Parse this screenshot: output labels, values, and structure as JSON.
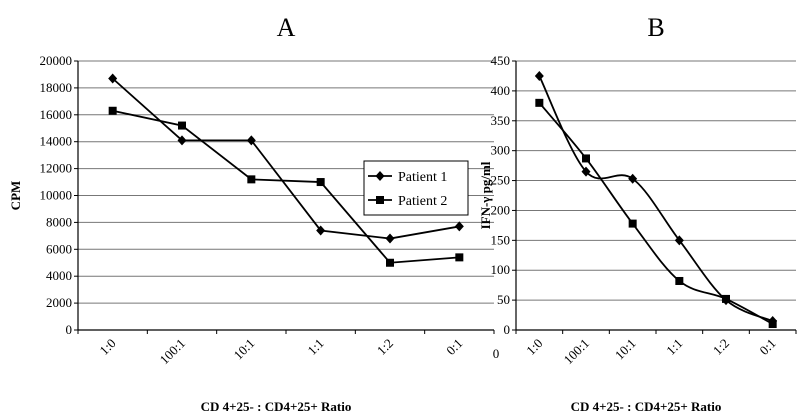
{
  "figure": {
    "panels": [
      "A",
      "B"
    ]
  },
  "legend": {
    "entries": [
      "Patient 1",
      "Patient 2"
    ]
  },
  "chart_data": [
    {
      "type": "line",
      "panel": "A",
      "title": "A",
      "ylabel": "CPM",
      "xlabel": "CD 4+25- : CD4+25+ Ratio",
      "categories": [
        "1:0",
        "100:1",
        "10:1",
        "1:1",
        "1:2",
        "0:1"
      ],
      "ylim": [
        0,
        20000
      ],
      "yticks": [
        0,
        2000,
        4000,
        6000,
        8000,
        10000,
        12000,
        14000,
        16000,
        18000,
        20000
      ],
      "grid": true,
      "smooth": false,
      "series": [
        {
          "name": "Patient 1",
          "marker": "diamond",
          "values": [
            18700,
            14100,
            14100,
            7400,
            6800,
            7700
          ]
        },
        {
          "name": "Patient 2",
          "marker": "square",
          "values": [
            16300,
            15200,
            11200,
            11000,
            5000,
            5400
          ]
        }
      ]
    },
    {
      "type": "line",
      "panel": "B",
      "title": "B",
      "ylabel": "IFN-γ pg/ml",
      "xlabel": "CD 4+25- : CD4+25+ Ratio",
      "categories": [
        "1:0",
        "100:1",
        "10:1",
        "1:1",
        "1:2",
        "0:1"
      ],
      "ylim": [
        0,
        450
      ],
      "yticks": [
        0,
        50,
        100,
        150,
        200,
        250,
        300,
        350,
        400,
        450
      ],
      "origin_label": "0",
      "grid": true,
      "smooth": true,
      "series": [
        {
          "name": "Patient 1",
          "marker": "diamond",
          "values": [
            425,
            265,
            253,
            150,
            50,
            15
          ]
        },
        {
          "name": "Patient 2",
          "marker": "square",
          "values": [
            380,
            287,
            178,
            82,
            52,
            10
          ]
        }
      ]
    }
  ]
}
